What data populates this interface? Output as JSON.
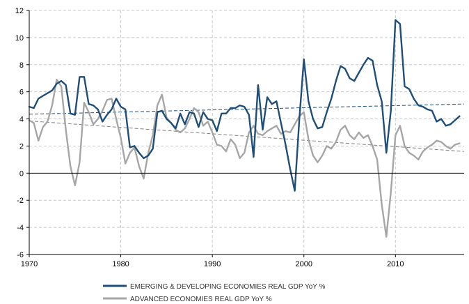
{
  "chart_data": {
    "type": "line",
    "title": "",
    "xlabel": "",
    "ylabel": "",
    "xlim": [
      1970,
      2017.5
    ],
    "ylim": [
      -6,
      12
    ],
    "x_ticks": [
      "1970",
      "1980",
      "1990",
      "2000",
      "2010"
    ],
    "y_ticks": [
      "-6",
      "-4",
      "-2",
      "0",
      "2",
      "4",
      "6",
      "8",
      "10",
      "12"
    ],
    "grid": true,
    "legend_position": "bottom",
    "series": [
      {
        "name": "EMERGING & DEVELOPING ECONOMIES REAL GDP YoY %",
        "color": "#1f4e79",
        "x": [
          1970,
          1970.5,
          1971,
          1971.5,
          1972,
          1972.5,
          1973,
          1973.5,
          1974,
          1974.5,
          1975,
          1975.5,
          1976,
          1976.5,
          1977,
          1977.5,
          1978,
          1978.5,
          1979,
          1979.5,
          1980,
          1980.5,
          1981,
          1981.5,
          1982,
          1982.5,
          1983,
          1983.5,
          1984,
          1984.5,
          1985,
          1985.5,
          1986,
          1986.5,
          1987,
          1987.5,
          1988,
          1988.5,
          1989,
          1989.5,
          1990,
          1990.5,
          1991,
          1991.5,
          1992,
          1992.5,
          1993,
          1993.5,
          1994,
          1994.5,
          1995,
          1995.5,
          1996,
          1996.5,
          1997,
          1997.5,
          1998,
          1998.5,
          1999,
          1999.5,
          2000,
          2000.5,
          2001,
          2001.5,
          2002,
          2002.5,
          2003,
          2003.5,
          2004,
          2004.5,
          2005,
          2005.5,
          2006,
          2006.5,
          2007,
          2007.5,
          2008,
          2008.5,
          2009,
          2009.5,
          2010,
          2010.5,
          2011,
          2011.5,
          2012,
          2012.5,
          2013,
          2013.5,
          2014,
          2014.5,
          2015,
          2015.5,
          2016,
          2016.5,
          2017
        ],
        "y": [
          4.9,
          4.8,
          5.5,
          5.7,
          5.9,
          6.1,
          6.6,
          6.8,
          6.5,
          4.4,
          4.3,
          7.1,
          7.1,
          5.1,
          5.0,
          4.7,
          3.8,
          4.3,
          4.7,
          5.5,
          4.9,
          4.7,
          1.9,
          2.0,
          1.5,
          1.1,
          1.3,
          1.8,
          4.5,
          4.6,
          4.0,
          3.7,
          3.3,
          4.4,
          3.6,
          4.5,
          4.4,
          3.4,
          4.5,
          4.0,
          3.9,
          3.1,
          4.4,
          4.4,
          4.8,
          4.8,
          5.0,
          4.9,
          4.3,
          1.2,
          6.5,
          3.2,
          5.6,
          5.1,
          5.3,
          3.7,
          2.1,
          0.3,
          -1.3,
          4.0,
          8.4,
          5.3,
          4.0,
          3.3,
          3.4,
          4.5,
          5.5,
          6.8,
          7.9,
          7.7,
          7.0,
          6.8,
          7.4,
          8.0,
          8.5,
          8.3,
          6.5,
          5.3,
          1.5,
          4.6,
          11.3,
          11.0,
          6.4,
          6.2,
          5.5,
          5.0,
          4.9,
          4.7,
          4.6,
          3.8,
          4.0,
          3.5,
          3.6,
          3.9,
          4.2
        ]
      },
      {
        "name": "ADVANCED ECONOMIES REAL GDP YoY %",
        "color": "#a6a6a6",
        "x": [
          1970,
          1970.5,
          1971,
          1971.5,
          1972,
          1972.5,
          1973,
          1973.5,
          1974,
          1974.5,
          1975,
          1975.5,
          1976,
          1976.5,
          1977,
          1977.5,
          1978,
          1978.5,
          1979,
          1979.5,
          1980,
          1980.5,
          1981,
          1981.5,
          1982,
          1982.5,
          1983,
          1983.5,
          1984,
          1984.5,
          1985,
          1985.5,
          1986,
          1986.5,
          1987,
          1987.5,
          1988,
          1988.5,
          1989,
          1989.5,
          1990,
          1990.5,
          1991,
          1991.5,
          1992,
          1992.5,
          1993,
          1993.5,
          1994,
          1994.5,
          1995,
          1995.5,
          1996,
          1996.5,
          1997,
          1997.5,
          1998,
          1998.5,
          1999,
          1999.5,
          2000,
          2000.5,
          2001,
          2001.5,
          2002,
          2002.5,
          2003,
          2003.5,
          2004,
          2004.5,
          2005,
          2005.5,
          2006,
          2006.5,
          2007,
          2007.5,
          2008,
          2008.5,
          2009,
          2009.5,
          2010,
          2010.5,
          2011,
          2011.5,
          2012,
          2012.5,
          2013,
          2013.5,
          2014,
          2014.5,
          2015,
          2015.5,
          2016,
          2016.5,
          2017
        ],
        "y": [
          3.9,
          3.7,
          2.4,
          3.4,
          3.8,
          5.0,
          6.9,
          6.4,
          3.2,
          0.5,
          -0.9,
          0.8,
          5.2,
          4.5,
          3.6,
          4.0,
          4.6,
          5.4,
          5.5,
          4.0,
          2.6,
          0.7,
          1.5,
          1.9,
          0.5,
          -0.4,
          1.5,
          2.8,
          5.0,
          5.8,
          4.1,
          3.7,
          3.2,
          3.0,
          3.3,
          4.0,
          4.8,
          4.5,
          3.5,
          3.8,
          3.0,
          2.1,
          2.0,
          1.6,
          2.5,
          2.1,
          1.1,
          1.5,
          3.0,
          3.5,
          2.9,
          2.8,
          3.1,
          3.3,
          3.5,
          2.9,
          3.1,
          3.0,
          3.6,
          4.2,
          4.5,
          2.5,
          1.3,
          0.8,
          1.3,
          2.0,
          1.8,
          2.3,
          3.2,
          3.5,
          2.8,
          2.5,
          3.0,
          2.6,
          2.8,
          2.0,
          1.0,
          -2.3,
          -4.7,
          -1.4,
          2.8,
          3.5,
          2.0,
          1.5,
          1.3,
          1.0,
          1.6,
          1.9,
          2.1,
          2.4,
          2.3,
          2.0,
          1.8,
          2.1,
          2.2
        ]
      }
    ],
    "trendlines": [
      {
        "series": "EMERGING & DEVELOPING ECONOMIES REAL GDP YoY %",
        "color": "#1f4e79",
        "x": [
          1970,
          2017.5
        ],
        "y": [
          4.35,
          5.1
        ]
      },
      {
        "series": "ADVANCED ECONOMIES REAL GDP YoY %",
        "color": "#808080",
        "x": [
          1970,
          2017.5
        ],
        "y": [
          3.85,
          1.6
        ]
      }
    ]
  }
}
